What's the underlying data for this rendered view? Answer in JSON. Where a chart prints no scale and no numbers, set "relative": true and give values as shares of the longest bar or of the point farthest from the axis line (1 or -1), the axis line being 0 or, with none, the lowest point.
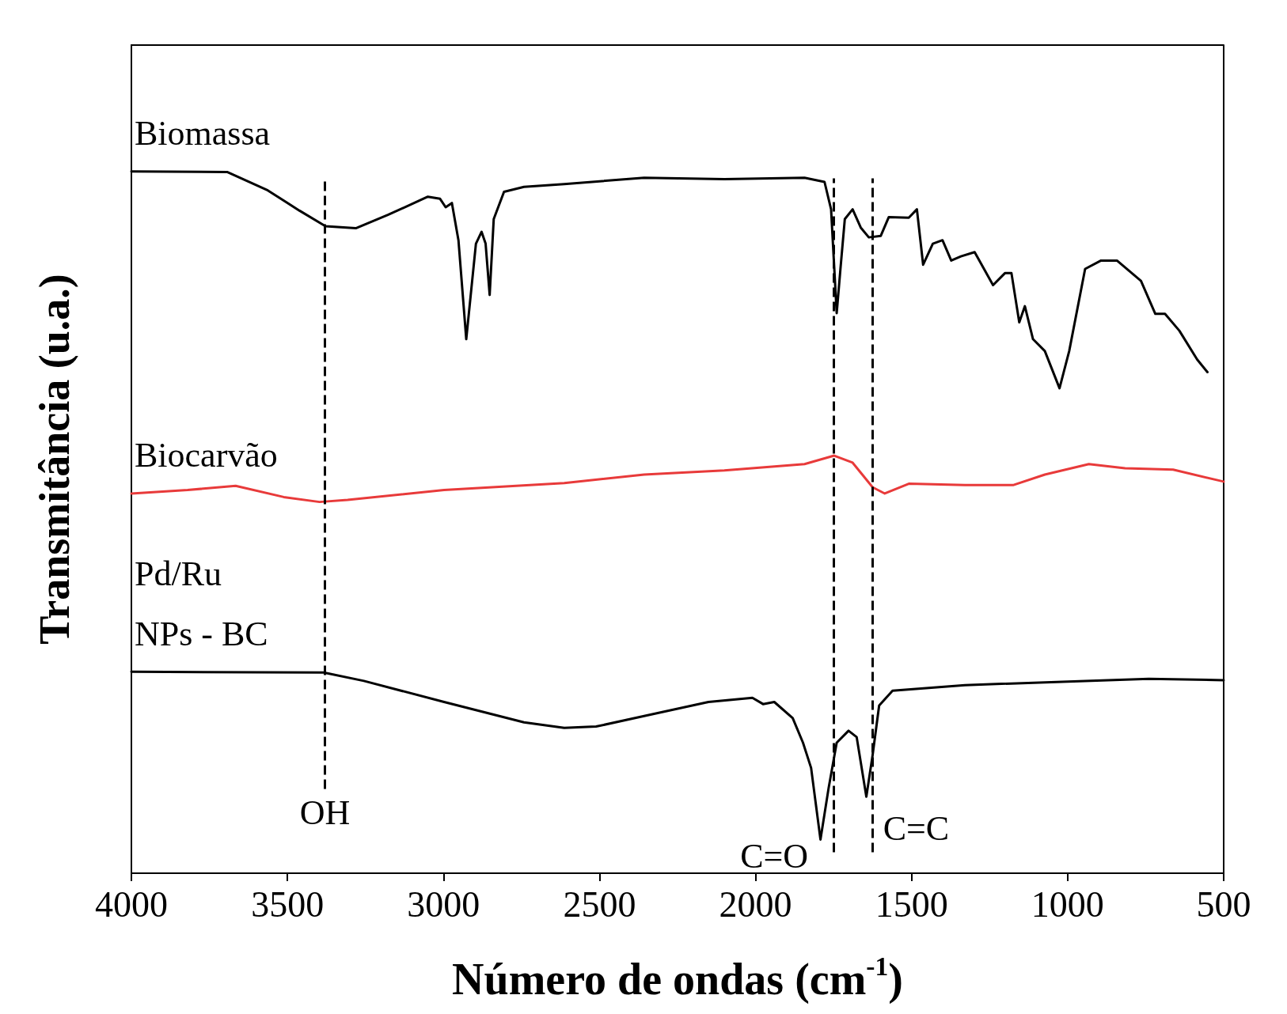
{
  "chart_data": {
    "type": "line",
    "relative": true,
    "xlabel": "Número de ondas (cm$^{-1}$)",
    "ylabel": "Transmitância (u.a.)",
    "xlim": [
      4000,
      500
    ],
    "xticks": [
      4000,
      3500,
      3000,
      2500,
      2000,
      1500,
      1000,
      500
    ],
    "tick_labels": "x",
    "grid": false,
    "legend": false,
    "marker": "none",
    "line_style": "solid",
    "series": [
      {
        "name": "Biomassa",
        "color": "#000000",
        "x": [
          4000,
          3692,
          3563,
          3461,
          3378,
          3281,
          3178,
          3050,
          3011,
          2993,
          2973,
          2952,
          2927,
          2896,
          2878,
          2865,
          2852,
          2839,
          2806,
          2742,
          2613,
          2357,
          2100,
          1843,
          1779,
          1758,
          1740,
          1728,
          1714,
          1689,
          1663,
          1637,
          1599,
          1573,
          1509,
          1483,
          1463,
          1432,
          1401,
          1373,
          1342,
          1298,
          1239,
          1201,
          1180,
          1155,
          1137,
          1111,
          1073,
          1026,
          995,
          944,
          893,
          842,
          765,
          719,
          688,
          642,
          585,
          552
        ],
        "values": [
          1.0,
          0.999,
          0.973,
          0.944,
          0.922,
          0.919,
          0.938,
          0.964,
          0.961,
          0.949,
          0.955,
          0.902,
          0.761,
          0.897,
          0.914,
          0.897,
          0.824,
          0.932,
          0.971,
          0.978,
          0.982,
          0.991,
          0.989,
          0.991,
          0.985,
          0.946,
          0.798,
          0.861,
          0.932,
          0.946,
          0.92,
          0.906,
          0.908,
          0.935,
          0.934,
          0.946,
          0.867,
          0.897,
          0.902,
          0.873,
          0.879,
          0.885,
          0.838,
          0.855,
          0.855,
          0.785,
          0.808,
          0.761,
          0.744,
          0.691,
          0.744,
          0.861,
          0.873,
          0.873,
          0.844,
          0.797,
          0.797,
          0.773,
          0.732,
          0.714
        ]
      },
      {
        "name": "Biocarvão",
        "color": "#e83a3a",
        "x": [
          4000,
          3820,
          3666,
          3512,
          3397,
          3307,
          2998,
          2613,
          2357,
          2100,
          1843,
          1748,
          1689,
          1625,
          1586,
          1509,
          1329,
          1175,
          1073,
          932,
          816,
          662,
          500
        ],
        "values": [
          0.541,
          0.546,
          0.552,
          0.536,
          0.529,
          0.532,
          0.546,
          0.556,
          0.568,
          0.574,
          0.583,
          0.595,
          0.585,
          0.55,
          0.541,
          0.555,
          0.553,
          0.553,
          0.568,
          0.583,
          0.577,
          0.575,
          0.558
        ]
      },
      {
        "name": "Pd/Ru NPs - BC",
        "color": "#000000",
        "x": [
          4000,
          3384,
          3255,
          2998,
          2742,
          2613,
          2511,
          2357,
          2151,
          2010,
          1976,
          1940,
          1881,
          1848,
          1822,
          1792,
          1766,
          1740,
          1702,
          1676,
          1645,
          1625,
          1604,
          1561,
          1329,
          944,
          740,
          500
        ],
        "values": [
          0.287,
          0.286,
          0.274,
          0.244,
          0.215,
          0.207,
          0.209,
          0.224,
          0.244,
          0.25,
          0.241,
          0.244,
          0.221,
          0.186,
          0.15,
          0.048,
          0.121,
          0.186,
          0.203,
          0.194,
          0.109,
          0.168,
          0.239,
          0.26,
          0.268,
          0.274,
          0.277,
          0.275
        ]
      }
    ],
    "ref_lines": [
      {
        "axis": "x",
        "value": 3380,
        "label": "OH",
        "color": "#000000",
        "line_style": "dashed"
      },
      {
        "axis": "x",
        "value": 1750,
        "label": "C=O",
        "color": "#000000",
        "line_style": "dashed"
      },
      {
        "axis": "x",
        "value": 1625,
        "label": "C=C",
        "color": "#000000",
        "line_style": "dashed"
      }
    ]
  }
}
